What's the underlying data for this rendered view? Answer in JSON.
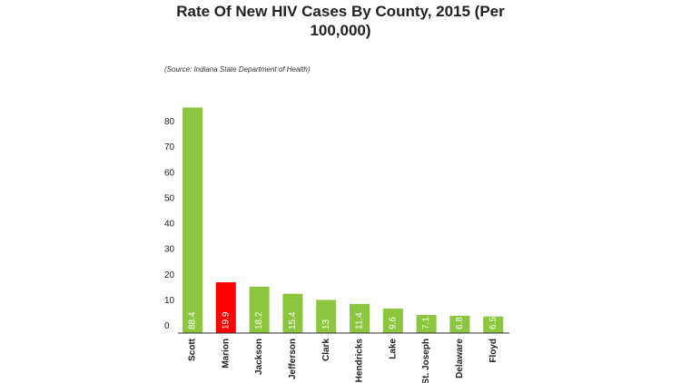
{
  "title": "Rate Of New HIV Cases By County, 2015 (Per 100,000)",
  "source": "(Source: Indiana State Department of Health)",
  "colors": {
    "default_bar": "#8cc63f",
    "highlight_bar": "#ff0000",
    "axis": "#333333"
  },
  "chart_data": {
    "type": "bar",
    "title": "Rate Of New HIV Cases By County, 2015 (Per 100,000)",
    "xlabel": "",
    "ylabel": "",
    "categories": [
      "Scott",
      "Marion",
      "Jackson",
      "Jefferson",
      "Clark",
      "Hendricks",
      "Lake",
      "St. Joseph",
      "Delaware",
      "Floyd"
    ],
    "values": [
      88.4,
      19.9,
      18.2,
      15.4,
      13,
      11.4,
      9.6,
      7.1,
      6.8,
      6.5
    ],
    "data_labels": [
      "88.4",
      "19.9",
      "18.2",
      "15.4",
      "13",
      "11.4",
      "9.6",
      "7.1",
      "6.8",
      "6.5"
    ],
    "highlight": [
      "Marion"
    ],
    "yticks": [
      0,
      10,
      20,
      30,
      40,
      50,
      60,
      70,
      80
    ],
    "ylim": [
      0,
      90
    ],
    "grid": false,
    "legend": "none"
  }
}
